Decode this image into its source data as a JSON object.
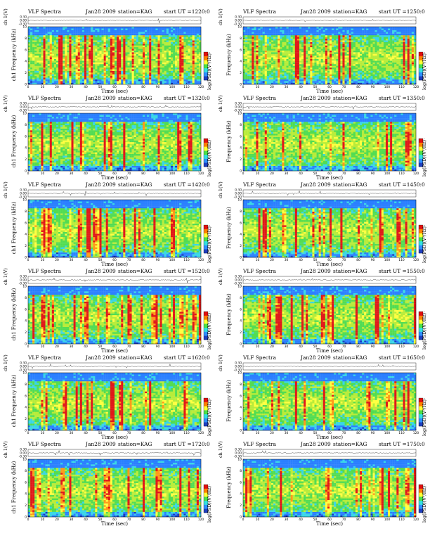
{
  "chart_data": {
    "type": "heatmap",
    "layout": "6 rows x 2 columns of VLF spectrogram panels",
    "common": {
      "label": "VLF Spectra",
      "date": "Jan28 2009",
      "station": "station=KAG",
      "ut_prefix": "start  UT  =",
      "ch_axis_label": "ch 1(V)",
      "ch_ticks": [
        "0.30",
        "0.00",
        "-0.30"
      ],
      "ch_ylim": [
        -0.3,
        0.3
      ],
      "xlabel": "Time  (sec)",
      "xlim": [
        0,
        120
      ],
      "xticks": [
        0,
        10,
        20,
        30,
        40,
        50,
        60,
        70,
        80,
        90,
        100,
        110,
        120
      ],
      "ylabel": "Frequency  (kHz)",
      "ylim": [
        0,
        10
      ],
      "yticks": [
        0,
        2,
        4,
        6,
        8,
        10
      ],
      "colorbar_label": "log(PSD)(V²/Hz)",
      "colorbar_colors": [
        "#1f3fbf",
        "#2f8fff",
        "#33e0e0",
        "#4ae04a",
        "#ffff33",
        "#ff8000",
        "#e01010"
      ],
      "colorbar_ticks": [
        "-",
        "-"
      ]
    },
    "panels": [
      {
        "ut": "1220:0",
        "row_prefix": "ch1"
      },
      {
        "ut": "1250:0",
        "row_prefix": ""
      },
      {
        "ut": "1320:0",
        "row_prefix": "ch1"
      },
      {
        "ut": "1350:0",
        "row_prefix": ""
      },
      {
        "ut": "1420:0",
        "row_prefix": "ch1"
      },
      {
        "ut": "1450:0",
        "row_prefix": ""
      },
      {
        "ut": "1520:0",
        "row_prefix": "ch1"
      },
      {
        "ut": "1550:0",
        "row_prefix": ""
      },
      {
        "ut": "1620:0",
        "row_prefix": "ch1"
      },
      {
        "ut": "1650:0",
        "row_prefix": ""
      },
      {
        "ut": "1720:0",
        "row_prefix": "ch1"
      },
      {
        "ut": "1750:0",
        "row_prefix": ""
      }
    ]
  }
}
